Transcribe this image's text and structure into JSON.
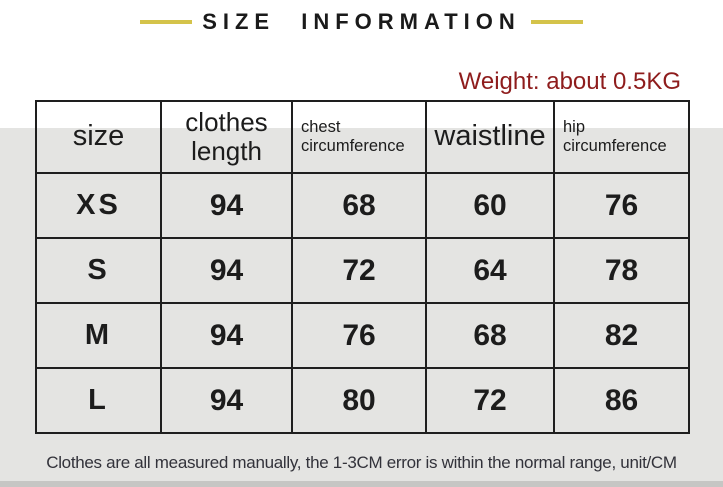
{
  "page": {
    "title": "SIZE INFORMATION",
    "weight_note": "Weight: about 0.5KG",
    "footer_note": "Clothes are all measured manually, the 1-3CM error is within the normal range, unit/CM"
  },
  "colors": {
    "title_dash_gold": "#d4c34a",
    "weight_text_red": "#8e1c1c",
    "band_gray": "#e4e4e2",
    "bottom_strip_gray": "#c6c6c4",
    "table_border": "#1e1e1e",
    "text_dark": "#1c1c1c"
  },
  "size_table": {
    "headers": [
      "size",
      "clothes length",
      "chest circumference",
      "waistline",
      "hip circumference"
    ],
    "rows": [
      [
        "XS",
        "94",
        "68",
        "60",
        "76"
      ],
      [
        "S",
        "94",
        "72",
        "64",
        "78"
      ],
      [
        "M",
        "94",
        "76",
        "68",
        "82"
      ],
      [
        "L",
        "94",
        "80",
        "72",
        "86"
      ]
    ]
  }
}
